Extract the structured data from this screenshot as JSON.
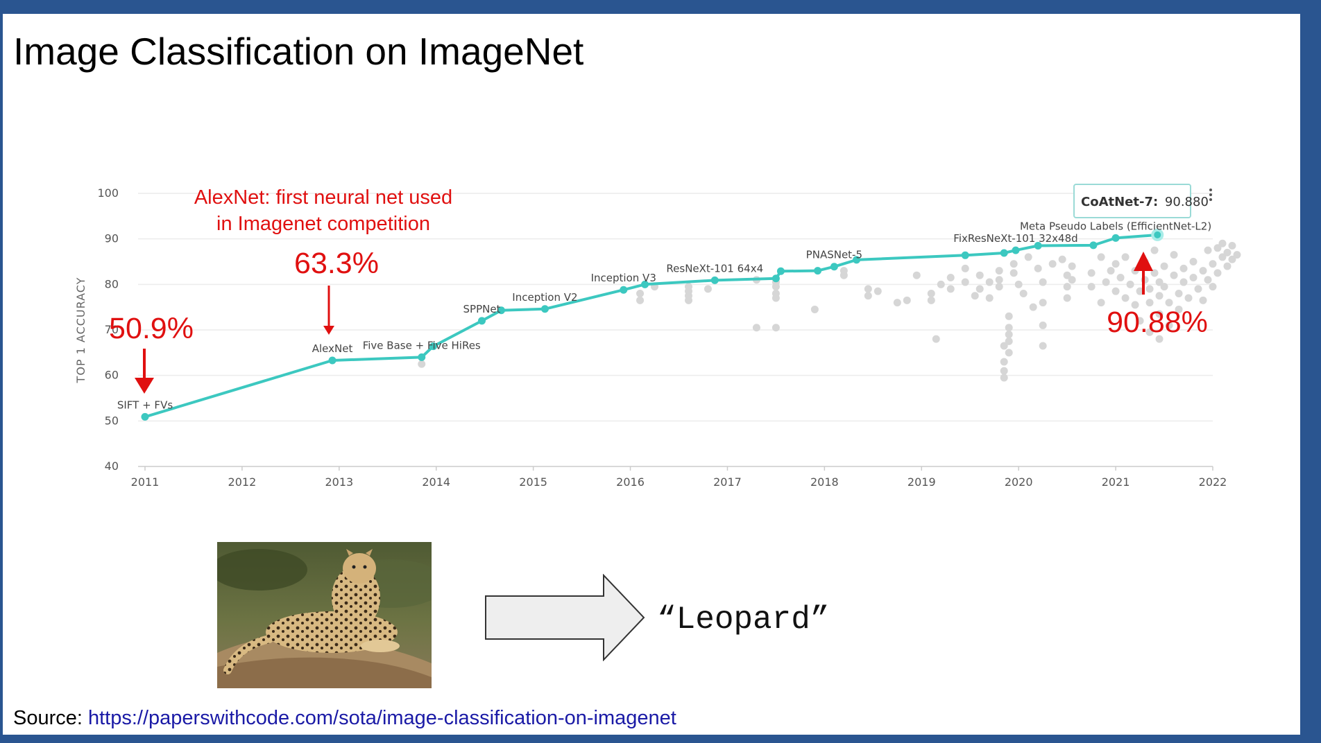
{
  "slide": {
    "title": "Image Classification on ImageNet",
    "source_prefix": "Source: ",
    "source_url": "https://paperswithcode.com/sota/image-classification-on-imagenet",
    "example_label": "“Leopard”"
  },
  "colors": {
    "background": "#2a5590",
    "sota_line": "#3cc8c0",
    "other_points": "#d6d6d6",
    "annotation": "#e01010",
    "link": "#1a1aa6"
  },
  "chart_data": {
    "type": "line",
    "ylabel": "TOP 1 ACCURACY",
    "xlabel": "",
    "xlim": [
      2011,
      2022
    ],
    "ylim": [
      40,
      100
    ],
    "x_ticks": [
      "2011",
      "2012",
      "2013",
      "2014",
      "2015",
      "2016",
      "2017",
      "2018",
      "2019",
      "2020",
      "2021",
      "2022"
    ],
    "y_ticks": [
      "40",
      "50",
      "60",
      "70",
      "80",
      "90",
      "100"
    ],
    "grid": true,
    "sota": [
      {
        "x": 2011.0,
        "y": 50.9
      },
      {
        "x": 2012.93,
        "y": 63.3
      },
      {
        "x": 2013.85,
        "y": 64.0
      },
      {
        "x": 2013.97,
        "y": 66.4
      },
      {
        "x": 2014.47,
        "y": 72.0
      },
      {
        "x": 2014.67,
        "y": 74.3
      },
      {
        "x": 2015.12,
        "y": 74.6
      },
      {
        "x": 2015.93,
        "y": 78.8
      },
      {
        "x": 2016.15,
        "y": 80.0
      },
      {
        "x": 2016.87,
        "y": 80.9
      },
      {
        "x": 2017.5,
        "y": 81.3
      },
      {
        "x": 2017.55,
        "y": 82.9
      },
      {
        "x": 2017.93,
        "y": 83.0
      },
      {
        "x": 2018.1,
        "y": 83.9
      },
      {
        "x": 2018.33,
        "y": 85.4
      },
      {
        "x": 2019.45,
        "y": 86.4
      },
      {
        "x": 2019.85,
        "y": 86.9
      },
      {
        "x": 2019.97,
        "y": 87.5
      },
      {
        "x": 2020.2,
        "y": 88.5
      },
      {
        "x": 2020.77,
        "y": 88.6
      },
      {
        "x": 2021.0,
        "y": 90.2
      },
      {
        "x": 2021.43,
        "y": 90.88
      }
    ],
    "point_labels": [
      {
        "text": "SIFT + FVs",
        "x": 2011.0,
        "y": 50.9
      },
      {
        "text": "AlexNet",
        "x": 2012.93,
        "y": 63.3
      },
      {
        "text": "Five Base + Five HiRes",
        "x": 2013.85,
        "y": 64.0
      },
      {
        "text": "SPPNet",
        "x": 2014.47,
        "y": 72.0
      },
      {
        "text": "Inception V2",
        "x": 2015.12,
        "y": 74.6
      },
      {
        "text": "Inception V3",
        "x": 2015.93,
        "y": 78.8
      },
      {
        "text": "ResNeXt-101 64x4",
        "x": 2016.87,
        "y": 80.9
      },
      {
        "text": "PNASNet-5",
        "x": 2018.1,
        "y": 83.9
      },
      {
        "text": "FixResNeXt-101 32x48d",
        "x": 2019.97,
        "y": 87.5
      },
      {
        "text": "Meta Pseudo Labels (EfficientNet-L2)",
        "x": 2021.0,
        "y": 90.2
      }
    ],
    "tooltip": {
      "model": "CoAtNet-7:",
      "value": "90.880"
    },
    "annotations": {
      "alexnet_note_1": "AlexNet: first neural net used",
      "alexnet_note_2": "in Imagenet competition",
      "pct_alexnet": "63.3%",
      "pct_sift": "50.9%",
      "pct_coatnet": "90.88%"
    },
    "other_points": [
      {
        "x": 2013.85,
        "y": 62.5
      },
      {
        "x": 2016.1,
        "y": 76.5
      },
      {
        "x": 2016.1,
        "y": 78.0
      },
      {
        "x": 2016.25,
        "y": 79.5
      },
      {
        "x": 2016.6,
        "y": 76.5
      },
      {
        "x": 2016.6,
        "y": 77.5
      },
      {
        "x": 2016.6,
        "y": 78.5
      },
      {
        "x": 2016.6,
        "y": 79.5
      },
      {
        "x": 2016.8,
        "y": 79.0
      },
      {
        "x": 2017.3,
        "y": 81.0
      },
      {
        "x": 2017.3,
        "y": 70.5
      },
      {
        "x": 2017.5,
        "y": 70.5
      },
      {
        "x": 2017.5,
        "y": 77.0
      },
      {
        "x": 2017.5,
        "y": 78.0
      },
      {
        "x": 2017.5,
        "y": 79.5
      },
      {
        "x": 2017.5,
        "y": 80.5
      },
      {
        "x": 2017.9,
        "y": 74.5
      },
      {
        "x": 2018.2,
        "y": 82.0
      },
      {
        "x": 2018.2,
        "y": 83.0
      },
      {
        "x": 2018.45,
        "y": 79.0
      },
      {
        "x": 2018.45,
        "y": 77.5
      },
      {
        "x": 2018.55,
        "y": 78.5
      },
      {
        "x": 2018.75,
        "y": 76.0
      },
      {
        "x": 2018.85,
        "y": 76.5
      },
      {
        "x": 2018.95,
        "y": 82.0
      },
      {
        "x": 2019.1,
        "y": 78.0
      },
      {
        "x": 2019.1,
        "y": 76.5
      },
      {
        "x": 2019.15,
        "y": 68.0
      },
      {
        "x": 2019.2,
        "y": 80.0
      },
      {
        "x": 2019.3,
        "y": 81.5
      },
      {
        "x": 2019.3,
        "y": 79.0
      },
      {
        "x": 2019.45,
        "y": 83.5
      },
      {
        "x": 2019.45,
        "y": 80.5
      },
      {
        "x": 2019.55,
        "y": 77.5
      },
      {
        "x": 2019.6,
        "y": 82.0
      },
      {
        "x": 2019.6,
        "y": 79.0
      },
      {
        "x": 2019.7,
        "y": 80.5
      },
      {
        "x": 2019.7,
        "y": 77.0
      },
      {
        "x": 2019.8,
        "y": 83.0
      },
      {
        "x": 2019.8,
        "y": 81.0
      },
      {
        "x": 2019.8,
        "y": 79.5
      },
      {
        "x": 2019.85,
        "y": 66.5
      },
      {
        "x": 2019.85,
        "y": 63.0
      },
      {
        "x": 2019.85,
        "y": 61.0
      },
      {
        "x": 2019.85,
        "y": 59.5
      },
      {
        "x": 2019.9,
        "y": 70.5
      },
      {
        "x": 2019.9,
        "y": 69.0
      },
      {
        "x": 2019.9,
        "y": 67.5
      },
      {
        "x": 2019.9,
        "y": 65.0
      },
      {
        "x": 2019.9,
        "y": 73.0
      },
      {
        "x": 2019.95,
        "y": 84.5
      },
      {
        "x": 2019.95,
        "y": 82.5
      },
      {
        "x": 2020.0,
        "y": 80.0
      },
      {
        "x": 2020.05,
        "y": 78.0
      },
      {
        "x": 2020.1,
        "y": 86.0
      },
      {
        "x": 2020.15,
        "y": 75.0
      },
      {
        "x": 2020.2,
        "y": 83.5
      },
      {
        "x": 2020.25,
        "y": 80.5
      },
      {
        "x": 2020.25,
        "y": 76.0
      },
      {
        "x": 2020.25,
        "y": 71.0
      },
      {
        "x": 2020.25,
        "y": 66.5
      },
      {
        "x": 2020.35,
        "y": 84.5
      },
      {
        "x": 2020.45,
        "y": 85.5
      },
      {
        "x": 2020.5,
        "y": 82.0
      },
      {
        "x": 2020.5,
        "y": 79.5
      },
      {
        "x": 2020.5,
        "y": 77.0
      },
      {
        "x": 2020.55,
        "y": 84.0
      },
      {
        "x": 2020.55,
        "y": 81.0
      },
      {
        "x": 2020.75,
        "y": 82.5
      },
      {
        "x": 2020.75,
        "y": 79.5
      },
      {
        "x": 2020.85,
        "y": 76.0
      },
      {
        "x": 2020.85,
        "y": 86.0
      },
      {
        "x": 2020.9,
        "y": 80.5
      },
      {
        "x": 2020.95,
        "y": 83.0
      },
      {
        "x": 2021.0,
        "y": 78.5
      },
      {
        "x": 2021.0,
        "y": 84.5
      },
      {
        "x": 2021.05,
        "y": 81.5
      },
      {
        "x": 2021.1,
        "y": 77.0
      },
      {
        "x": 2021.1,
        "y": 86.0
      },
      {
        "x": 2021.15,
        "y": 80.0
      },
      {
        "x": 2021.2,
        "y": 83.0
      },
      {
        "x": 2021.2,
        "y": 75.5
      },
      {
        "x": 2021.25,
        "y": 78.5
      },
      {
        "x": 2021.25,
        "y": 72.0
      },
      {
        "x": 2021.3,
        "y": 85.0
      },
      {
        "x": 2021.3,
        "y": 81.0
      },
      {
        "x": 2021.35,
        "y": 79.0
      },
      {
        "x": 2021.35,
        "y": 76.0
      },
      {
        "x": 2021.35,
        "y": 69.5
      },
      {
        "x": 2021.4,
        "y": 87.5
      },
      {
        "x": 2021.4,
        "y": 82.5
      },
      {
        "x": 2021.45,
        "y": 80.5
      },
      {
        "x": 2021.45,
        "y": 77.5
      },
      {
        "x": 2021.45,
        "y": 73.5
      },
      {
        "x": 2021.45,
        "y": 68.0
      },
      {
        "x": 2021.5,
        "y": 84.0
      },
      {
        "x": 2021.5,
        "y": 79.5
      },
      {
        "x": 2021.55,
        "y": 76.0
      },
      {
        "x": 2021.55,
        "y": 71.0
      },
      {
        "x": 2021.6,
        "y": 82.0
      },
      {
        "x": 2021.6,
        "y": 86.5
      },
      {
        "x": 2021.65,
        "y": 78.0
      },
      {
        "x": 2021.65,
        "y": 74.5
      },
      {
        "x": 2021.7,
        "y": 80.5
      },
      {
        "x": 2021.7,
        "y": 83.5
      },
      {
        "x": 2021.75,
        "y": 77.0
      },
      {
        "x": 2021.8,
        "y": 81.5
      },
      {
        "x": 2021.8,
        "y": 85.0
      },
      {
        "x": 2021.85,
        "y": 79.0
      },
      {
        "x": 2021.9,
        "y": 83.0
      },
      {
        "x": 2021.9,
        "y": 76.5
      },
      {
        "x": 2021.95,
        "y": 87.5
      },
      {
        "x": 2021.95,
        "y": 81.0
      },
      {
        "x": 2022.0,
        "y": 84.5
      },
      {
        "x": 2022.0,
        "y": 79.5
      },
      {
        "x": 2022.05,
        "y": 88.0
      },
      {
        "x": 2022.05,
        "y": 82.5
      },
      {
        "x": 2022.1,
        "y": 86.0
      },
      {
        "x": 2022.1,
        "y": 89.0
      },
      {
        "x": 2022.15,
        "y": 84.0
      },
      {
        "x": 2022.15,
        "y": 87.0
      },
      {
        "x": 2022.2,
        "y": 85.5
      },
      {
        "x": 2022.2,
        "y": 88.5
      },
      {
        "x": 2022.25,
        "y": 86.5
      }
    ]
  }
}
